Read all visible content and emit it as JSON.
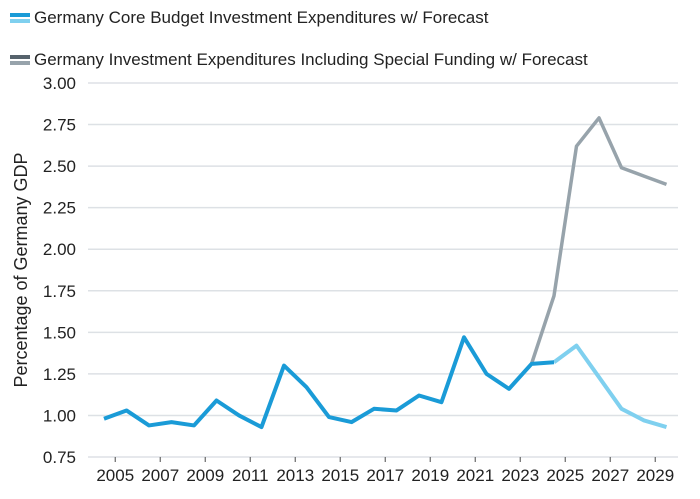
{
  "chart_data": {
    "type": "line",
    "title": "",
    "xlabel": "",
    "ylabel": "Percentage of Germany GDP",
    "ylim": [
      0.75,
      3.0
    ],
    "yticks": [
      "0.75",
      "1.00",
      "1.25",
      "1.50",
      "1.75",
      "2.00",
      "2.25",
      "2.50",
      "2.75",
      "3.00"
    ],
    "x": [
      2004,
      2005,
      2006,
      2007,
      2008,
      2009,
      2010,
      2011,
      2012,
      2013,
      2014,
      2015,
      2016,
      2017,
      2018,
      2019,
      2020,
      2021,
      2022,
      2023,
      2024,
      2025,
      2026,
      2027,
      2028,
      2029
    ],
    "xtick_labels": [
      "2005",
      "2007",
      "2009",
      "2011",
      "2013",
      "2015",
      "2017",
      "2019",
      "2021",
      "2023",
      "2025",
      "2027",
      "2029"
    ],
    "grid": true,
    "legend_position": "top-left",
    "series": [
      {
        "name": "Germany Core Budget Investment Expenditures w/ Forecast",
        "color": "#1a9bd7",
        "forecast_color": "#7fd0ef",
        "forecast_from": 2024,
        "values": [
          0.98,
          1.03,
          0.94,
          0.96,
          0.94,
          1.09,
          1.0,
          0.93,
          1.3,
          1.17,
          0.99,
          0.96,
          1.04,
          1.03,
          1.12,
          1.08,
          1.47,
          1.25,
          1.16,
          1.31,
          1.32,
          1.42,
          1.23,
          1.04,
          0.97,
          0.93
        ]
      },
      {
        "name": "Germany Investment Expenditures Including Special Funding w/ Forecast",
        "color": "#97a3ab",
        "values": [
          null,
          null,
          null,
          null,
          null,
          null,
          null,
          null,
          null,
          null,
          null,
          null,
          null,
          null,
          null,
          null,
          null,
          null,
          null,
          1.31,
          1.72,
          2.62,
          2.79,
          2.49,
          2.44,
          2.39
        ]
      }
    ]
  }
}
